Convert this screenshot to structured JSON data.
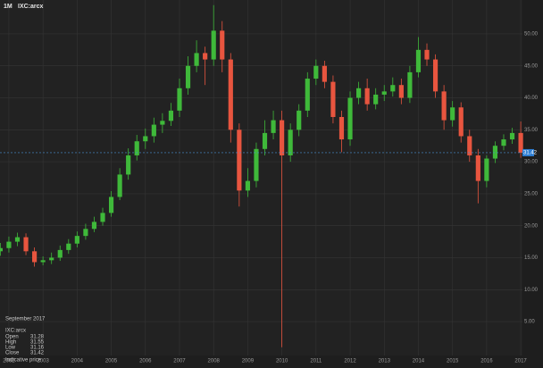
{
  "chart_data": {
    "type": "candlestick",
    "interval": "1M",
    "symbol": "IXC:arcx",
    "colors": {
      "up": "#3fb93a",
      "down": "#e8553f",
      "background": "#222222",
      "grid": "#353535",
      "price_line": "#4a8fd0",
      "price_box": "#2f7fd4"
    },
    "grid": true,
    "xlim": [
      2001.74,
      2017.05
    ],
    "xticks": [
      2002,
      2003,
      2004,
      2005,
      2006,
      2007,
      2008,
      2009,
      2010,
      2011,
      2012,
      2013,
      2014,
      2015,
      2016,
      2017
    ],
    "ylim": [
      -0.3,
      55.3
    ],
    "yticks": [
      {
        "value": 5,
        "label": "5.00"
      },
      {
        "value": 10,
        "label": "10.00"
      },
      {
        "value": 15,
        "label": "15.00"
      },
      {
        "value": 20,
        "label": "20.00"
      },
      {
        "value": 25,
        "label": "25.00"
      },
      {
        "value": 30,
        "label": "30.00"
      },
      {
        "value": 35,
        "label": "35.00"
      },
      {
        "value": 40,
        "label": "40.00"
      },
      {
        "value": 45,
        "label": "45.00"
      },
      {
        "value": 50,
        "label": "50.00"
      }
    ],
    "last_price": 31.42,
    "x": [
      2001.75,
      2002.0,
      2002.25,
      2002.5,
      2002.75,
      2003.0,
      2003.25,
      2003.5,
      2003.75,
      2004.0,
      2004.25,
      2004.5,
      2004.75,
      2005.0,
      2005.25,
      2005.5,
      2005.75,
      2006.0,
      2006.25,
      2006.5,
      2006.75,
      2007.0,
      2007.25,
      2007.5,
      2007.75,
      2008.0,
      2008.25,
      2008.5,
      2008.75,
      2009.0,
      2009.25,
      2009.5,
      2009.75,
      2010.0,
      2010.25,
      2010.5,
      2010.75,
      2011.0,
      2011.25,
      2011.5,
      2011.75,
      2012.0,
      2012.25,
      2012.5,
      2012.75,
      2013.0,
      2013.25,
      2013.5,
      2013.75,
      2014.0,
      2014.25,
      2014.5,
      2014.75,
      2015.0,
      2015.25,
      2015.5,
      2015.75,
      2016.0,
      2016.25,
      2016.5,
      2016.75,
      2017.0
    ],
    "open": [
      16.0,
      16.5,
      17.5,
      18.2,
      16.0,
      14.3,
      14.6,
      15.0,
      16.2,
      17.2,
      18.4,
      19.5,
      20.6,
      22.0,
      24.5,
      28.0,
      31.0,
      33.2,
      34.0,
      35.8,
      36.4,
      38.0,
      41.5,
      45.0,
      47.0,
      46.0,
      50.5,
      46.0,
      35.0,
      25.5,
      27.0,
      32.0,
      34.5,
      36.5,
      31.0,
      35.0,
      38.0,
      43.0,
      45.0,
      42.5,
      37.0,
      33.5,
      40.0,
      41.5,
      39.0,
      40.5,
      41.0,
      42.0,
      40.0,
      44.0,
      47.5,
      46.0,
      41.0,
      36.5,
      38.5,
      34.0,
      31.0,
      27.0,
      30.5,
      32.5,
      33.5,
      34.5
    ],
    "high": [
      17.3,
      18.3,
      18.9,
      18.8,
      16.6,
      15.2,
      15.8,
      16.9,
      17.9,
      19.1,
      20.3,
      21.4,
      22.8,
      25.4,
      29.0,
      32.1,
      34.2,
      35.2,
      36.9,
      37.6,
      39.2,
      43.0,
      46.5,
      49.0,
      48.0,
      54.5,
      52.0,
      47.0,
      36.0,
      29.0,
      33.0,
      36.5,
      38.0,
      38.0,
      36.0,
      39.0,
      44.0,
      46.0,
      45.8,
      43.5,
      38.0,
      41.0,
      42.5,
      43.0,
      41.5,
      42.0,
      43.2,
      43.0,
      45.0,
      49.5,
      48.5,
      46.8,
      42.0,
      39.5,
      39.3,
      35.0,
      32.0,
      31.0,
      33.2,
      34.3,
      35.3,
      36.3
    ],
    "low": [
      15.3,
      15.8,
      16.8,
      15.4,
      13.6,
      13.8,
      14.0,
      14.5,
      15.6,
      16.6,
      17.8,
      19.0,
      20.0,
      21.4,
      24.0,
      27.2,
      30.2,
      32.0,
      33.0,
      34.5,
      35.6,
      37.0,
      40.5,
      44.0,
      42.0,
      45.0,
      44.0,
      33.0,
      23.0,
      24.5,
      26.0,
      31.0,
      33.5,
      1.0,
      30.0,
      34.0,
      37.0,
      42.0,
      41.5,
      36.0,
      31.5,
      32.5,
      39.0,
      38.0,
      38.2,
      39.5,
      40.2,
      39.0,
      39.2,
      43.2,
      45.0,
      40.0,
      35.0,
      35.5,
      33.0,
      30.0,
      23.5,
      26.0,
      29.8,
      31.8,
      32.8,
      30.6
    ],
    "close": [
      16.5,
      17.5,
      18.2,
      16.0,
      14.3,
      14.6,
      15.0,
      16.2,
      17.2,
      18.4,
      19.5,
      20.6,
      22.0,
      24.5,
      28.0,
      31.0,
      33.2,
      34.0,
      35.8,
      36.4,
      38.0,
      41.5,
      45.0,
      47.0,
      46.0,
      50.5,
      46.0,
      35.0,
      25.5,
      27.0,
      32.0,
      34.5,
      36.5,
      31.0,
      35.0,
      38.0,
      43.0,
      45.0,
      42.5,
      37.0,
      33.5,
      40.0,
      41.5,
      39.0,
      40.5,
      41.0,
      42.0,
      40.0,
      44.0,
      47.5,
      46.0,
      41.0,
      36.5,
      38.5,
      34.0,
      31.0,
      27.0,
      30.5,
      32.5,
      33.5,
      34.5,
      31.42
    ],
    "info_box": {
      "date": "September 2017",
      "symbol": "IXC:arcx",
      "rows": [
        {
          "label": "Open",
          "value": 31.28
        },
        {
          "label": "High",
          "value": 31.55
        },
        {
          "label": "Low",
          "value": 31.16
        },
        {
          "label": "Close",
          "value": 31.42
        }
      ],
      "note": "Indicative price"
    }
  }
}
